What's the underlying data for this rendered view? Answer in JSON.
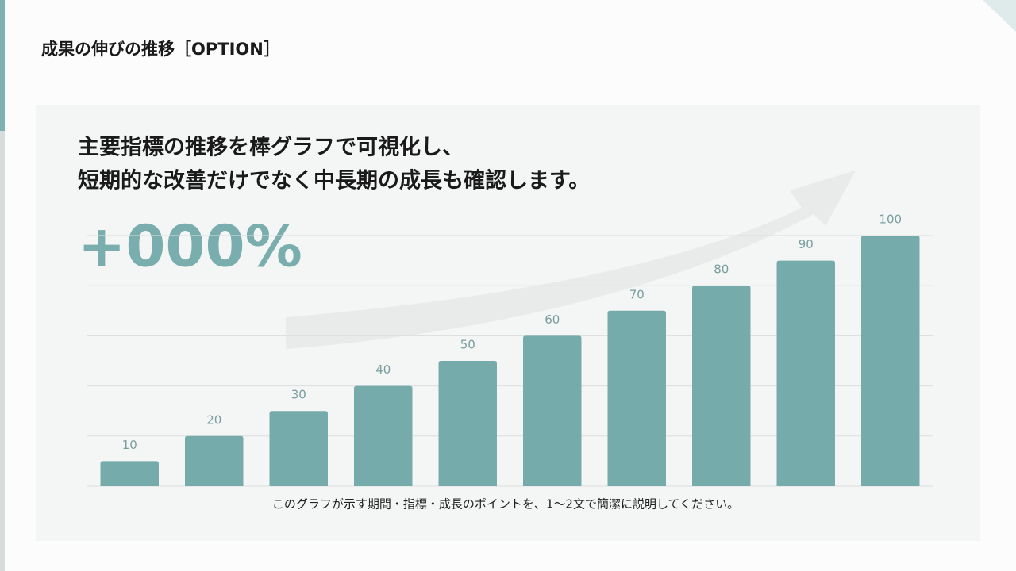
{
  "header": {
    "title": "成果の伸びの推移［OPTION］"
  },
  "heading": {
    "lines": [
      "主要指標の推移を棒グラフで可視化し、",
      "短期的な改善だけでなく中長期の成長も確認します。"
    ]
  },
  "highlight": "+000%",
  "caption": "このグラフが示す期間・指標・成長のポイントを、1〜2文で簡潔に説明してください。",
  "chart_data": {
    "type": "bar",
    "categories": [
      null,
      null,
      null,
      null,
      null,
      null,
      null,
      null,
      null,
      null
    ],
    "values": [
      10,
      20,
      30,
      40,
      50,
      60,
      70,
      80,
      90,
      100
    ],
    "color": "#76abab",
    "ylim": [
      0,
      100
    ],
    "yticks": [
      0,
      20,
      40,
      60,
      80,
      100
    ],
    "grid": true
  }
}
